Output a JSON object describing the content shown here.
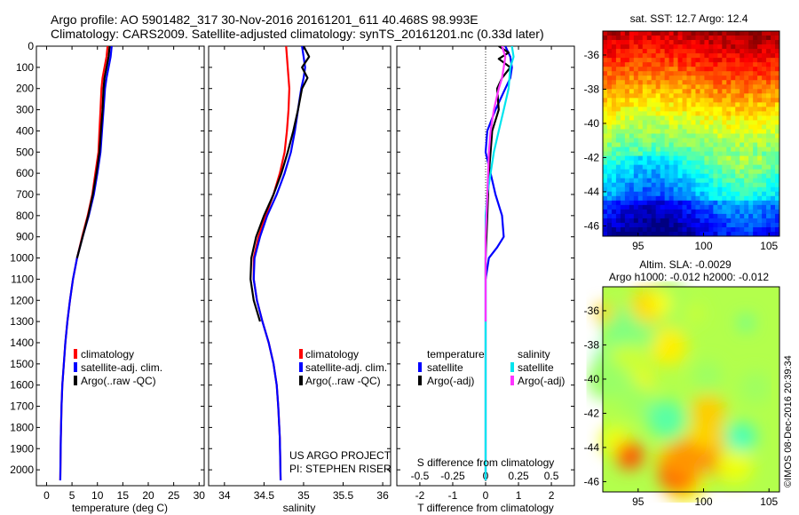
{
  "header": {
    "line1": "Argo profile: AO 5901482_317 30-Nov-2016 20161201_611 40.468S 98.993E",
    "line2": "Climatology: CARS2009. Satellite-adjusted climatology: synTS_20161201.nc (0.33d later)"
  },
  "colors": {
    "climatology": "#ff0000",
    "satellite": "#0000ff",
    "argo": "#000000",
    "sal_satellite": "#00e5ee",
    "sal_argo": "#ff33ff"
  },
  "chart_data": [
    {
      "id": "temperature",
      "type": "line",
      "xlabel": "temperature (deg C)",
      "xlim": [
        -2,
        31
      ],
      "ylim": [
        0,
        2075
      ],
      "xticks": [
        0,
        5,
        10,
        15,
        20,
        25,
        30
      ],
      "yticks": [
        0,
        100,
        200,
        300,
        400,
        500,
        600,
        700,
        800,
        900,
        1000,
        1100,
        1200,
        1300,
        1400,
        1500,
        1600,
        1700,
        1800,
        1900,
        2000
      ],
      "legend": [
        "climatology",
        "satellite-adj. clim.",
        "Argo(..raw -QC)"
      ],
      "legend_position": "lower-right",
      "series": [
        {
          "name": "climatology",
          "color": "climatology",
          "x": [
            12.0,
            11.8,
            11.4,
            11.0,
            10.8,
            10.6,
            10.4,
            10.2,
            9.6,
            9.0,
            8.1,
            7.0,
            6.0,
            5.2,
            4.6,
            4.1,
            3.7,
            3.4,
            3.1,
            2.95,
            2.8,
            2.7
          ],
          "y": [
            0,
            50,
            100,
            150,
            200,
            300,
            400,
            500,
            600,
            700,
            800,
            900,
            1000,
            1100,
            1200,
            1300,
            1400,
            1500,
            1600,
            1700,
            1850,
            2050
          ]
        },
        {
          "name": "satellite-adj. clim.",
          "color": "satellite",
          "x": [
            12.8,
            12.6,
            12.2,
            11.8,
            11.5,
            11.2,
            10.9,
            10.6,
            10.0,
            9.3,
            8.3,
            7.1,
            6.0,
            5.2,
            4.6,
            4.1,
            3.7,
            3.4,
            3.1,
            2.95,
            2.8,
            2.7
          ],
          "y": [
            0,
            50,
            100,
            150,
            200,
            300,
            400,
            500,
            600,
            700,
            800,
            900,
            1000,
            1100,
            1200,
            1300,
            1400,
            1500,
            1600,
            1700,
            1850,
            2050
          ]
        },
        {
          "name": "Argo(..raw -QC)",
          "color": "argo",
          "x": [
            12.4,
            12.2,
            11.8,
            11.4,
            11.2,
            11.0,
            10.7,
            10.4,
            9.8,
            9.1,
            8.2,
            7.1,
            6.0
          ],
          "y": [
            0,
            50,
            100,
            150,
            200,
            300,
            400,
            500,
            600,
            700,
            800,
            900,
            1000
          ]
        }
      ]
    },
    {
      "id": "salinity",
      "type": "line",
      "xlabel": "salinity",
      "xlim": [
        33.8,
        36.1
      ],
      "ylim": [
        0,
        2075
      ],
      "xticks": [
        34,
        34.5,
        35,
        35.5,
        36
      ],
      "xticklabels": [
        "34",
        "34.5",
        "35",
        "35.5",
        "36"
      ],
      "legend": [
        "climatology",
        "satellite-adj. clim.",
        "Argo(..raw -QC)"
      ],
      "legend_position": "lower-right",
      "annotation": [
        "US ARGO PROJECT",
        "PI: STEPHEN RISER"
      ],
      "series": [
        {
          "name": "climatology",
          "color": "climatology",
          "x": [
            34.78,
            34.79,
            34.8,
            34.81,
            34.82,
            34.81,
            34.79,
            34.76,
            34.7,
            34.62,
            34.52,
            34.43,
            34.37,
            34.37,
            34.41,
            34.48,
            34.56,
            34.62,
            34.66,
            34.68,
            34.7,
            34.71
          ],
          "y": [
            0,
            50,
            100,
            150,
            200,
            300,
            400,
            500,
            600,
            700,
            800,
            900,
            1000,
            1100,
            1200,
            1300,
            1400,
            1500,
            1600,
            1700,
            1850,
            2050
          ]
        },
        {
          "name": "satellite-adj. clim.",
          "color": "satellite",
          "x": [
            34.98,
            35.0,
            35.02,
            35.0,
            34.97,
            34.93,
            34.89,
            34.84,
            34.76,
            34.66,
            34.54,
            34.45,
            34.38,
            34.37,
            34.41,
            34.48,
            34.56,
            34.62,
            34.66,
            34.68,
            34.7,
            34.71
          ],
          "y": [
            0,
            50,
            100,
            150,
            200,
            300,
            400,
            500,
            600,
            700,
            800,
            900,
            1000,
            1100,
            1200,
            1300,
            1400,
            1500,
            1600,
            1700,
            1850,
            2050
          ]
        },
        {
          "name": "Argo(..raw -QC)",
          "color": "argo",
          "x": [
            35.0,
            35.07,
            34.98,
            35.05,
            34.98,
            34.93,
            34.87,
            34.8,
            34.72,
            34.62,
            34.5,
            34.4,
            34.34,
            34.33,
            34.37,
            34.45
          ],
          "y": [
            0,
            50,
            100,
            150,
            200,
            300,
            400,
            500,
            600,
            700,
            800,
            900,
            1000,
            1100,
            1200,
            1300
          ]
        }
      ]
    },
    {
      "id": "difference",
      "type": "line",
      "xlabel": "T difference from climatology",
      "xlabel_top": "S difference from climatology",
      "xlim": [
        -2.7,
        2.7
      ],
      "ylim": [
        0,
        2075
      ],
      "xticks": [
        -2,
        -1,
        0,
        1,
        2
      ],
      "top_ticklabels": [
        "-0.5",
        "-0.25",
        "0",
        "0.25",
        "0.5"
      ],
      "legend_temperature_title": "temperature",
      "legend_salinity_title": "salinity",
      "legend_temperature": [
        "satellite",
        "Argo(-adj)"
      ],
      "legend_salinity": [
        "satellite",
        "Argo(-adj)"
      ],
      "series": [
        {
          "name": "temperature satellite",
          "color": "satellite",
          "x": [
            0.6,
            0.75,
            0.8,
            0.75,
            0.6,
            0.3,
            0.05,
            0.0,
            0.15,
            0.3,
            0.5,
            0.55,
            0.35,
            0.1,
            0.0,
            0.0,
            0.0,
            0.0,
            0.0,
            0.0,
            0.0
          ],
          "y": [
            0,
            50,
            100,
            150,
            200,
            300,
            400,
            500,
            600,
            700,
            800,
            900,
            950,
            1000,
            1100,
            1200,
            1300,
            1500,
            1700,
            1900,
            2050
          ]
        },
        {
          "name": "temperature Argo(-adj)",
          "color": "argo",
          "x": [
            0.4,
            0.7,
            0.4,
            0.75,
            0.5,
            0.35,
            0.4,
            0.2,
            0.15,
            0.1,
            0.05,
            0.0,
            0.0
          ],
          "y": [
            0,
            30,
            60,
            100,
            150,
            200,
            300,
            400,
            500,
            600,
            800,
            1000,
            1100
          ]
        },
        {
          "name": "salinity satellite",
          "color": "sal_satellite",
          "x": [
            0.8,
            0.85,
            0.75,
            0.7,
            0.55,
            0.4,
            0.25,
            0.15,
            0.05,
            0.0,
            0.0,
            0.0,
            0.0,
            0.0,
            0.0,
            0.0
          ],
          "y": [
            0,
            50,
            100,
            200,
            300,
            400,
            500,
            600,
            700,
            800,
            1000,
            1200,
            1400,
            1600,
            1800,
            2050
          ]
        },
        {
          "name": "salinity Argo(-adj)",
          "color": "sal_argo",
          "x": [
            0.5,
            0.6,
            0.55,
            0.5,
            0.4,
            0.25,
            0.15,
            0.1,
            0.05,
            0.0,
            0.0,
            0.0,
            0.0
          ],
          "y": [
            0,
            50,
            100,
            150,
            200,
            300,
            400,
            500,
            700,
            900,
            1100,
            1200,
            1300
          ]
        }
      ]
    },
    {
      "id": "sst-map",
      "type": "heatmap",
      "title": "sat. SST: 12.7  Argo: 12.4",
      "xlim": [
        92.3,
        105.8
      ],
      "ylim": [
        -46.6,
        -34.6
      ],
      "xticks": [
        95,
        100,
        105
      ],
      "yticks": [
        -36,
        -38,
        -40,
        -42,
        -44,
        -46
      ],
      "colormap": "jet",
      "argo_position": [
        98.993,
        -40.468
      ]
    },
    {
      "id": "sla-map",
      "type": "heatmap",
      "title_line1": "Altim. SLA: -0.0029",
      "title_line2": "Argo h1000: -0.012 h2000: -0.012",
      "xlim": [
        92.3,
        105.8
      ],
      "ylim": [
        -46.6,
        -34.6
      ],
      "xticks": [
        95,
        100,
        105
      ],
      "yticks": [
        -36,
        -38,
        -40,
        -42,
        -44,
        -46
      ],
      "colormap": "jet",
      "argo_position": [
        98.993,
        -40.468
      ]
    }
  ],
  "footer": {
    "stamp": "©IMOS 08-Dec-2016 20:39:34"
  }
}
